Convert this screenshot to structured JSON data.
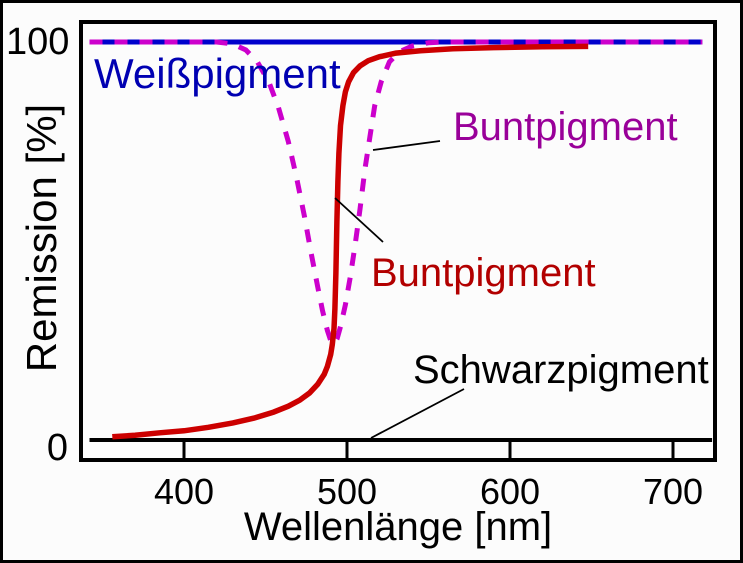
{
  "chart_data": {
    "type": "line",
    "title": "",
    "xlabel": "Wellenlänge [nm]",
    "ylabel": "Remission [%]",
    "xlim": [
      337,
      726
    ],
    "ylim": [
      0,
      100
    ],
    "x_ticks": [
      400,
      500,
      600,
      700
    ],
    "y_ticks": [
      0,
      100
    ],
    "grid": false,
    "legend_position": "inline-annotations",
    "series": [
      {
        "id": "weisspigment",
        "name": "Weißpigment",
        "color": "#0000cc",
        "style": "solid",
        "stroke_width": 5,
        "points": [
          [
            342,
            100
          ],
          [
            718,
            100
          ]
        ]
      },
      {
        "id": "buntpigment-gestrichelt",
        "name": "Buntpigment (gestrichelt)",
        "color": "#cc00cc",
        "style": "dashed",
        "stroke_width": 5,
        "points": [
          [
            342,
            100
          ],
          [
            420,
            100
          ],
          [
            430,
            99.5
          ],
          [
            438,
            98
          ],
          [
            445,
            95
          ],
          [
            452,
            90
          ],
          [
            458,
            83.5
          ],
          [
            464,
            75
          ],
          [
            469,
            66
          ],
          [
            474,
            56
          ],
          [
            478,
            47
          ],
          [
            482,
            38.5
          ],
          [
            485,
            32.5
          ],
          [
            488,
            27.5
          ],
          [
            490,
            25
          ],
          [
            492,
            24
          ],
          [
            494,
            25.5
          ],
          [
            496,
            28.5
          ],
          [
            499,
            34
          ],
          [
            502,
            41
          ],
          [
            505,
            49
          ],
          [
            508,
            58
          ],
          [
            511,
            68
          ],
          [
            514,
            76
          ],
          [
            517,
            84
          ],
          [
            521,
            90
          ],
          [
            526,
            95
          ],
          [
            532,
            97.5
          ],
          [
            540,
            99
          ],
          [
            550,
            99.8
          ],
          [
            560,
            100
          ],
          [
            718,
            100
          ]
        ]
      },
      {
        "id": "schwarzpigment",
        "name": "Schwarzpigment",
        "color": "#000000",
        "style": "solid",
        "stroke_width": 4,
        "points": [
          [
            342,
            0
          ],
          [
            724,
            0
          ]
        ]
      },
      {
        "id": "buntpigment",
        "name": "Buntpigment",
        "color": "#cc0000",
        "style": "solid",
        "stroke_width": 5.5,
        "points": [
          [
            356,
            0.8
          ],
          [
            370,
            1.2
          ],
          [
            385,
            1.8
          ],
          [
            400,
            2.3
          ],
          [
            415,
            3.2
          ],
          [
            430,
            4.3
          ],
          [
            443,
            5.5
          ],
          [
            455,
            7
          ],
          [
            464,
            8.5
          ],
          [
            471,
            10
          ],
          [
            477,
            11.8
          ],
          [
            482,
            14
          ],
          [
            486,
            16.5
          ],
          [
            488,
            18.5
          ],
          [
            490,
            21.5
          ],
          [
            491,
            24
          ],
          [
            492,
            28
          ],
          [
            492.6,
            33
          ],
          [
            493.2,
            42
          ],
          [
            493.8,
            55
          ],
          [
            494.4,
            65
          ],
          [
            495,
            72
          ],
          [
            496,
            79
          ],
          [
            497.5,
            84
          ],
          [
            499,
            87.5
          ],
          [
            501,
            90
          ],
          [
            504,
            92.3
          ],
          [
            508,
            94
          ],
          [
            513,
            95.3
          ],
          [
            520,
            96.3
          ],
          [
            530,
            97.2
          ],
          [
            545,
            97.8
          ],
          [
            565,
            98.3
          ],
          [
            590,
            98.6
          ],
          [
            620,
            98.8
          ],
          [
            648,
            98.9
          ]
        ]
      }
    ]
  },
  "annotations": {
    "weiss": {
      "text": "Weißpigment",
      "color": "#0000b2"
    },
    "bunt_dashed": {
      "text": "Buntpigment",
      "color": "#990099"
    },
    "bunt_solid": {
      "text": "Buntpigment",
      "color": "#b20000"
    },
    "schwarz": {
      "text": "Schwarzpigment",
      "color": "#000000"
    }
  }
}
